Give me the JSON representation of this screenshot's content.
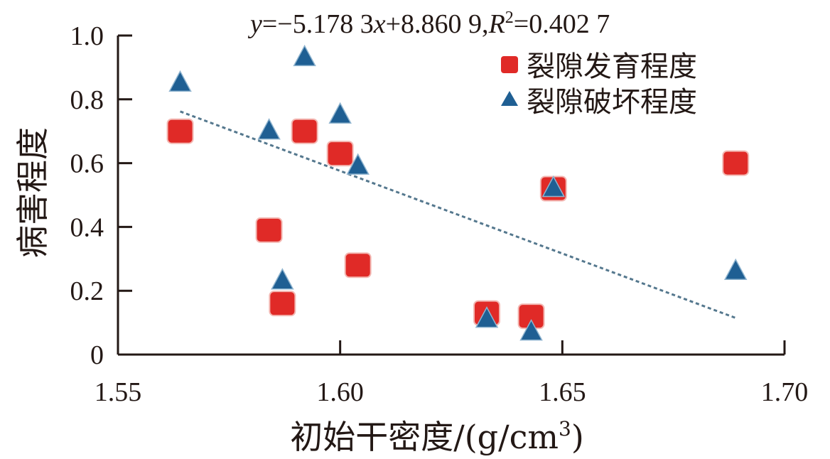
{
  "chart_data": {
    "type": "scatter",
    "title": "",
    "annotation": {
      "y": "y",
      "eq1": "=−5.178 3",
      "x": "x",
      "eq2": "+8.860 9,",
      "R": "R",
      "sup": "2",
      "eq3": "=0.402 7"
    },
    "xlabel": "初始干密度/(g/cm",
    "xlabel_sup": "3",
    "xlabel_end": ")",
    "ylabel": "病害程度",
    "xlim": [
      1.55,
      1.7
    ],
    "ylim": [
      0,
      1.0
    ],
    "x_ticks": [
      1.55,
      1.6,
      1.65,
      1.7
    ],
    "x_tick_labels": [
      "1.55",
      "1.60",
      "1.65",
      "1.70"
    ],
    "y_ticks": [
      0,
      0.2,
      0.4,
      0.6,
      0.8,
      1.0
    ],
    "y_tick_labels": [
      "0",
      "0.2",
      "0.4",
      "0.6",
      "0.8",
      "1.0"
    ],
    "legend_position": "top-right",
    "series": [
      {
        "name": "裂隙发育程度",
        "marker": "square",
        "color": "#e02a27",
        "points": [
          [
            1.564,
            0.7
          ],
          [
            1.584,
            0.39
          ],
          [
            1.587,
            0.16
          ],
          [
            1.592,
            0.7
          ],
          [
            1.6,
            0.63
          ],
          [
            1.604,
            0.28
          ],
          [
            1.633,
            0.13
          ],
          [
            1.643,
            0.12
          ],
          [
            1.648,
            0.52
          ],
          [
            1.689,
            0.6
          ]
        ]
      },
      {
        "name": "裂隙破坏程度",
        "marker": "triangle",
        "color": "#1f5f93",
        "points": [
          [
            1.564,
            0.85
          ],
          [
            1.584,
            0.7
          ],
          [
            1.587,
            0.23
          ],
          [
            1.592,
            0.93
          ],
          [
            1.6,
            0.75
          ],
          [
            1.604,
            0.59
          ],
          [
            1.633,
            0.11
          ],
          [
            1.643,
            0.07
          ],
          [
            1.648,
            0.52
          ],
          [
            1.689,
            0.26
          ]
        ]
      }
    ],
    "trendline": {
      "slope": -5.1783,
      "intercept": 8.8609,
      "x_range": [
        1.564,
        1.689
      ],
      "color": "#55788e",
      "style": "dashed"
    }
  }
}
